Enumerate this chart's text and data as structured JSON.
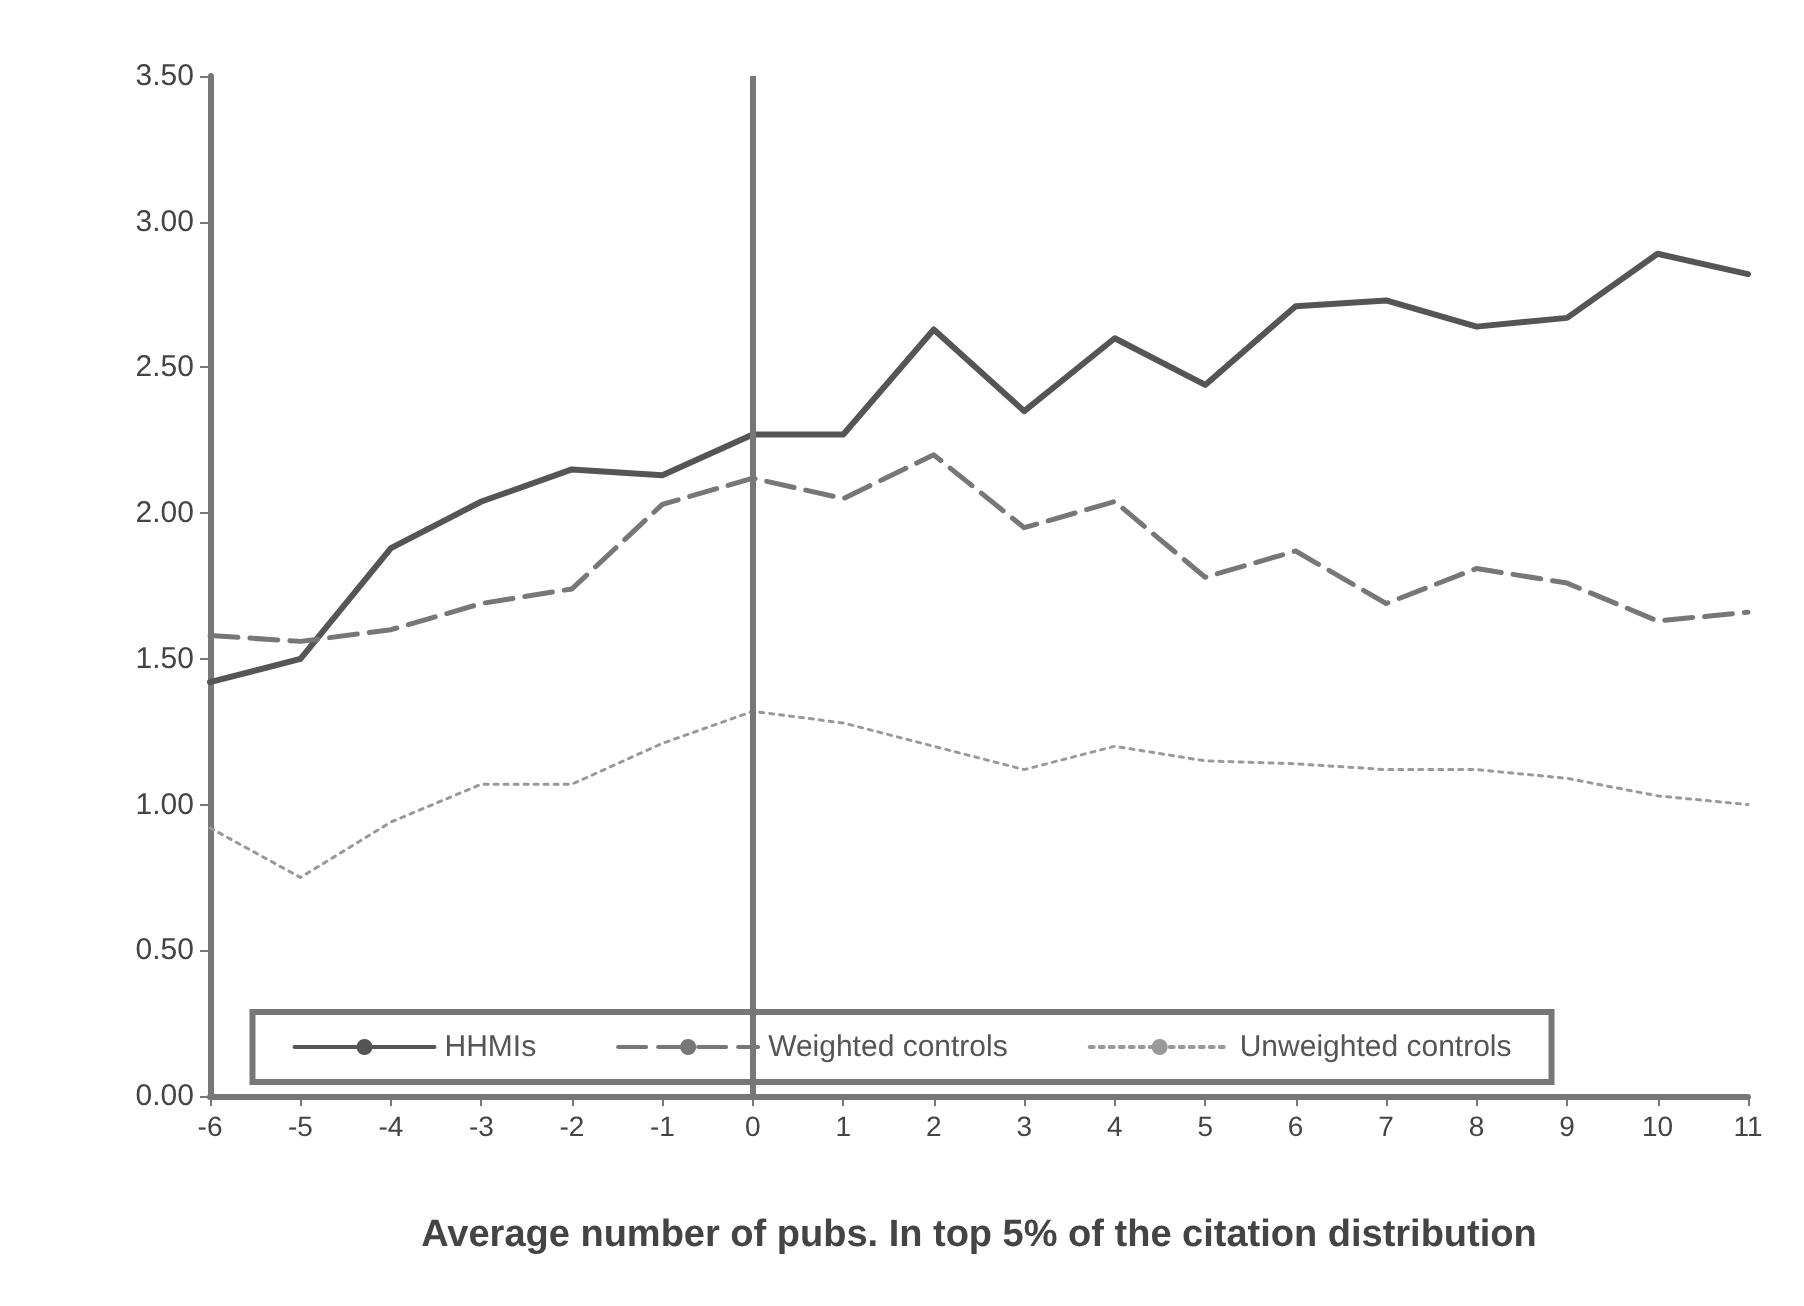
{
  "chart_data": {
    "type": "line",
    "xlabel": "Average number of pubs. In top 5% of the citation distribution",
    "categories": [
      "-6",
      "-5",
      "-4",
      "-3",
      "-2",
      "-1",
      "0",
      "1",
      "2",
      "3",
      "4",
      "5",
      "6",
      "7",
      "8",
      "9",
      "10",
      "11"
    ],
    "series": [
      {
        "name": "HHMIs",
        "color": "#555555",
        "line_style": "solid",
        "values": [
          1.42,
          1.5,
          1.88,
          2.04,
          2.15,
          2.13,
          2.27,
          2.27,
          2.63,
          2.35,
          2.6,
          2.44,
          2.71,
          2.73,
          2.64,
          2.67,
          2.89,
          2.82
        ]
      },
      {
        "name": "Weighted controls",
        "color": "#777777",
        "line_style": "dashed",
        "values": [
          1.58,
          1.56,
          1.6,
          1.69,
          1.74,
          2.03,
          2.12,
          2.05,
          2.2,
          1.95,
          2.04,
          1.78,
          1.87,
          1.69,
          1.81,
          1.76,
          1.63,
          1.66
        ]
      },
      {
        "name": "Unweighted controls",
        "color": "#999999",
        "line_style": "dotted",
        "values": [
          0.92,
          0.75,
          0.94,
          1.07,
          1.07,
          1.21,
          1.32,
          1.28,
          1.2,
          1.12,
          1.2,
          1.15,
          1.14,
          1.12,
          1.12,
          1.09,
          1.03,
          1.0
        ]
      }
    ],
    "ylim": [
      0,
      3.5
    ],
    "yticks": [
      {
        "value": 0,
        "label": "0.00"
      },
      {
        "value": 0.5,
        "label": "0.50"
      },
      {
        "value": 1,
        "label": "1.00"
      },
      {
        "value": 1.5,
        "label": "1.50"
      },
      {
        "value": 2,
        "label": "2.00"
      },
      {
        "value": 2.5,
        "label": "2.50"
      },
      {
        "value": 3,
        "label": "3.00"
      },
      {
        "value": 3.5,
        "label": "3.50"
      }
    ],
    "ref_lines": [
      {
        "axis": "x",
        "value": "0",
        "color": "#777777"
      }
    ],
    "legend": "bottom",
    "grid": false,
    "marker": "none"
  }
}
